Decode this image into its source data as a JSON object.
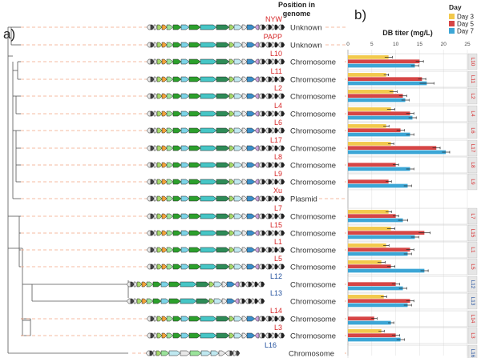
{
  "panels": {
    "a": "a)",
    "b": "b)"
  },
  "header": {
    "position_line1": "Position in",
    "position_line2": "genome"
  },
  "colors": {
    "red_strain": "#d62728",
    "blue_strain": "#1f4e9c",
    "day3": "#f2c94c",
    "day5": "#d64545",
    "day7": "#3ca6d6",
    "dash": "#f4a582"
  },
  "rows": [
    {
      "label": "NYW",
      "label_color": "red",
      "position": "Unknown"
    },
    {
      "label": "PAPP",
      "label_color": "red",
      "position": "Unknown"
    },
    {
      "label": "L10",
      "label_color": "red",
      "position": "Chromosome"
    },
    {
      "label": "L11",
      "label_color": "red",
      "position": "Chromosome"
    },
    {
      "label": "L2",
      "label_color": "red",
      "position": "Chromosome"
    },
    {
      "label": "L4",
      "label_color": "red",
      "position": "Chromosome"
    },
    {
      "label": "L6",
      "label_color": "red",
      "position": "Chromosome"
    },
    {
      "label": "L17",
      "label_color": "red",
      "position": "Chromosome"
    },
    {
      "label": "L8",
      "label_color": "red",
      "position": "Chromosome"
    },
    {
      "label": "L9",
      "label_color": "red",
      "position": "Chromosome"
    },
    {
      "label": "Xu",
      "label_color": "red",
      "position": "Plasmid"
    },
    {
      "label": "L7",
      "label_color": "red",
      "position": "Chromosome"
    },
    {
      "label": "L15",
      "label_color": "red",
      "position": "Chromosome"
    },
    {
      "label": "L1",
      "label_color": "red",
      "position": "Chromosome"
    },
    {
      "label": "L5",
      "label_color": "red",
      "position": "Chromosome"
    },
    {
      "label": "L12",
      "label_color": "blue",
      "position": "Chromosome"
    },
    {
      "label": "L13",
      "label_color": "blue",
      "position": "Chromosome"
    },
    {
      "label": "L14",
      "label_color": "red",
      "position": "Chromosome"
    },
    {
      "label": "L3",
      "label_color": "red",
      "position": "Chromosome"
    },
    {
      "label": "L16",
      "label_color": "blue",
      "position": "Chromosome"
    }
  ],
  "chart_data": {
    "type": "bar",
    "orientation": "horizontal",
    "title": "DB titer (mg/L)",
    "xlim": [
      0,
      25
    ],
    "xticks": [
      0,
      5,
      10,
      15,
      20,
      25
    ],
    "legend": {
      "title": "Day",
      "placement": "top-right",
      "entries": [
        "Day 3",
        "Day 5",
        "Day 7"
      ]
    },
    "categories": [
      "L10",
      "L11",
      "L2",
      "L4",
      "L6",
      "L17",
      "L8",
      "L9",
      "L7",
      "L15",
      "L1",
      "L5",
      "L12",
      "L13",
      "L14",
      "L3",
      "L16"
    ],
    "facet_labels": [
      "L10",
      "L11",
      "L2",
      "L4",
      "L6",
      "L17",
      "L8",
      "L9",
      "L7",
      "L15",
      "L1",
      "L5",
      "L12",
      "L13",
      "L14",
      "L3",
      "L16"
    ],
    "series": [
      {
        "name": "Day 3",
        "values": [
          8.5,
          8.0,
          9.5,
          9.0,
          8.0,
          9.0,
          0,
          0,
          8.5,
          9.0,
          8.0,
          7.0,
          0,
          7.5,
          0,
          7.0,
          0
        ],
        "errors": [
          0.8,
          0.5,
          0.8,
          0.8,
          0.6,
          0.6,
          0,
          0,
          0.6,
          0.8,
          0.6,
          0.8,
          0,
          0.6,
          0,
          0.6,
          0
        ]
      },
      {
        "name": "Day 5",
        "values": [
          15.0,
          15.5,
          11.5,
          13.0,
          11.0,
          18.5,
          10.0,
          8.5,
          10.0,
          16.0,
          13.0,
          9.0,
          10.0,
          13.0,
          5.5,
          10.0,
          0
        ],
        "errors": [
          0.8,
          0.8,
          0.8,
          0.8,
          0.8,
          0.8,
          0.6,
          0.6,
          0.6,
          1.2,
          0.8,
          0.8,
          0.8,
          0.8,
          0.6,
          0.8,
          0
        ]
      },
      {
        "name": "Day 7",
        "values": [
          14.0,
          16.5,
          12.0,
          13.5,
          13.0,
          20.5,
          13.0,
          12.5,
          11.5,
          14.0,
          12.5,
          16.0,
          11.5,
          12.5,
          9.0,
          11.0,
          0
        ],
        "errors": [
          0.8,
          1.5,
          0.8,
          0.8,
          0.8,
          0.8,
          0.8,
          0.8,
          1.0,
          0.8,
          0.8,
          0.8,
          0.8,
          0.8,
          0.6,
          0.8,
          0
        ]
      }
    ]
  }
}
